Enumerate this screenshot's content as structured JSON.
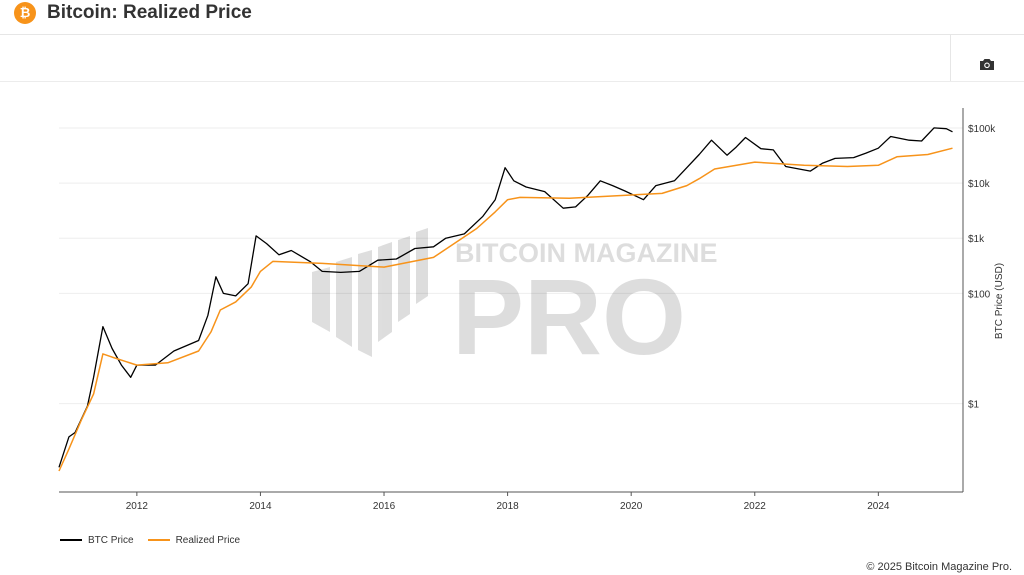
{
  "header": {
    "title": "Bitcoin: Realized Price",
    "logo_glyph": "₿",
    "logo_color": "#f7931a"
  },
  "toolbar": {
    "camera_icon": "camera-icon"
  },
  "watermark": {
    "line1": "BITCOIN MAGAZINE",
    "line2": "PRO"
  },
  "footer": {
    "copyright": "© 2025 Bitcoin Magazine Pro."
  },
  "chart_data": {
    "type": "line",
    "title": "",
    "xlabel": "",
    "ylabel": "BTC Price (USD)",
    "yscale": "log",
    "y_axis_side": "right",
    "xlim": [
      2010.74,
      2025.37
    ],
    "ylim": [
      0.025,
      230000
    ],
    "x_ticks": [
      2012,
      2014,
      2016,
      2018,
      2020,
      2022,
      2024
    ],
    "x_tick_labels": [
      "2012",
      "2014",
      "2016",
      "2018",
      "2020",
      "2022",
      "2024"
    ],
    "y_ticks": [
      1,
      100,
      1000,
      10000,
      100000
    ],
    "y_tick_labels": [
      "$1",
      "$100",
      "$1k",
      "$10k",
      "$100k"
    ],
    "grid": true,
    "legend_placement": "bottom-left",
    "series": [
      {
        "name": "BTC Price",
        "color": "#000000",
        "x": [
          2010.74,
          2010.9,
          2011.0,
          2011.2,
          2011.3,
          2011.45,
          2011.6,
          2011.75,
          2011.9,
          2012.0,
          2012.3,
          2012.6,
          2013.0,
          2013.15,
          2013.28,
          2013.4,
          2013.6,
          2013.8,
          2013.93,
          2014.1,
          2014.3,
          2014.5,
          2014.8,
          2015.0,
          2015.3,
          2015.6,
          2015.9,
          2016.2,
          2016.5,
          2016.8,
          2017.0,
          2017.3,
          2017.6,
          2017.8,
          2017.96,
          2018.1,
          2018.3,
          2018.6,
          2018.9,
          2019.1,
          2019.3,
          2019.5,
          2019.7,
          2019.9,
          2020.2,
          2020.4,
          2020.7,
          2020.9,
          2021.1,
          2021.3,
          2021.55,
          2021.7,
          2021.85,
          2022.1,
          2022.3,
          2022.5,
          2022.9,
          2023.1,
          2023.3,
          2023.6,
          2023.8,
          2024.0,
          2024.2,
          2024.5,
          2024.7,
          2024.9,
          2025.1,
          2025.2
        ],
        "values": [
          0.07,
          0.25,
          0.3,
          0.9,
          3,
          25,
          10,
          5,
          3,
          5,
          5,
          9,
          14,
          40,
          200,
          100,
          90,
          150,
          1100,
          800,
          500,
          600,
          380,
          250,
          240,
          250,
          400,
          420,
          650,
          700,
          1000,
          1200,
          2500,
          5000,
          19000,
          11000,
          8500,
          7000,
          3500,
          3700,
          6000,
          11000,
          9000,
          7200,
          5000,
          9000,
          11000,
          19000,
          33000,
          60000,
          32000,
          45000,
          67000,
          42000,
          40000,
          20000,
          16500,
          23000,
          28000,
          29000,
          35000,
          43000,
          70000,
          60000,
          58000,
          100000,
          97000,
          85000
        ]
      },
      {
        "name": "Realized Price",
        "color": "#f7931a",
        "x": [
          2010.74,
          2010.9,
          2011.1,
          2011.3,
          2011.45,
          2011.6,
          2012.0,
          2012.5,
          2013.0,
          2013.2,
          2013.35,
          2013.6,
          2013.85,
          2014.0,
          2014.2,
          2015.0,
          2016.0,
          2016.8,
          2017.5,
          2017.8,
          2018.0,
          2018.2,
          2019.0,
          2019.5,
          2020.5,
          2020.9,
          2021.1,
          2021.35,
          2022.0,
          2022.8,
          2023.5,
          2024.0,
          2024.3,
          2024.8,
          2025.2
        ],
        "values": [
          0.06,
          0.15,
          0.5,
          1.5,
          8,
          7,
          5,
          5.5,
          9,
          20,
          50,
          70,
          130,
          250,
          380,
          350,
          300,
          450,
          1500,
          3000,
          5000,
          5500,
          5300,
          5700,
          6500,
          9000,
          12000,
          18000,
          24000,
          21000,
          20000,
          21000,
          30000,
          33000,
          43000
        ]
      }
    ]
  }
}
